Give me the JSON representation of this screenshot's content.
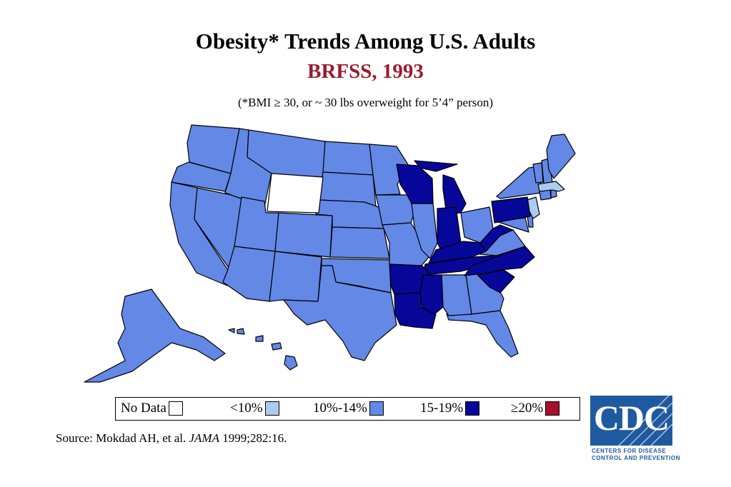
{
  "title": "Obesity* Trends Among U.S. Adults",
  "subtitle": "BRFSS, 1993",
  "note": "(*BMI ≥ 30, or ~ 30 lbs overweight for 5’4” person)",
  "legend": [
    {
      "label": "No Data",
      "color": "#ffffff"
    },
    {
      "label": "<10%",
      "color": "#aaccf0"
    },
    {
      "label": "10%-14%",
      "color": "#6388e6"
    },
    {
      "label": "15-19%",
      "color": "#07079a"
    },
    {
      "label": "≥20%",
      "color": "#a5102a"
    }
  ],
  "source": {
    "prefix": "Source: Mokdad AH, et al. ",
    "journal": "JAMA",
    "citation": " 1999;282:16."
  },
  "logo": {
    "letters": "CDC",
    "line1": "CENTERS FOR DISEASE",
    "line2": "CONTROL AND PREVENTION"
  },
  "map_data": {
    "no_data": [
      "WY"
    ],
    "under_10": [
      "MA",
      "NJ"
    ],
    "10_14": [
      "WA",
      "OR",
      "CA",
      "NV",
      "ID",
      "MT",
      "UT",
      "AZ",
      "CO",
      "NM",
      "ND",
      "SD",
      "NE",
      "KS",
      "OK",
      "TX",
      "MN",
      "IA",
      "MO",
      "IL",
      "OH",
      "GA",
      "FL",
      "AL",
      "VA",
      "MD",
      "DE",
      "NY",
      "VT",
      "NH",
      "ME",
      "CT",
      "RI",
      "AK",
      "HI"
    ],
    "15_19": [
      "WI",
      "MI",
      "IN",
      "KY",
      "WV",
      "TN",
      "AR",
      "LA",
      "MS",
      "NC",
      "SC",
      "PA"
    ],
    "20_plus": []
  }
}
